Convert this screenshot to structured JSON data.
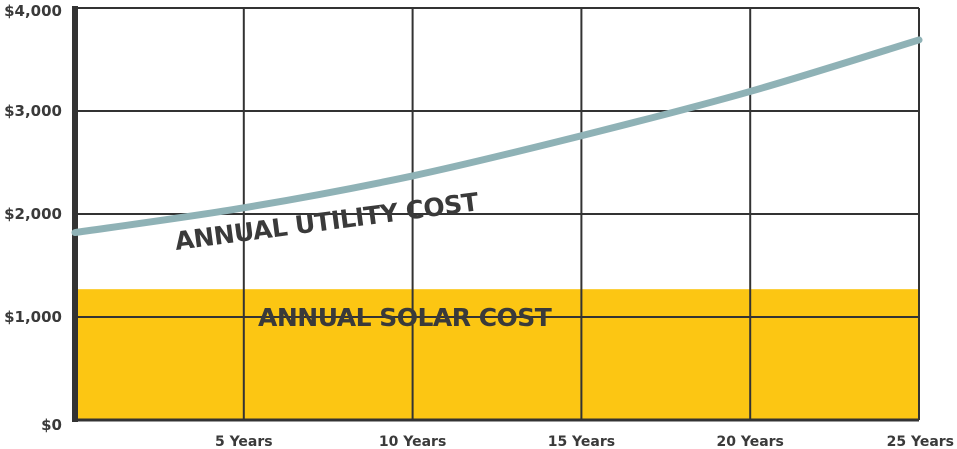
{
  "chart_data": {
    "type": "area",
    "x_tick_labels": [
      "5 Years",
      "10 Years",
      "15 Years",
      "20 Years",
      "25 Years"
    ],
    "x_tick_values": [
      5,
      10,
      15,
      20,
      25
    ],
    "xlim": [
      0,
      25
    ],
    "y_tick_labels": [
      "$0",
      "$1,000",
      "$2,000",
      "$3,000",
      "$4,000"
    ],
    "y_tick_values": [
      0,
      1000,
      2000,
      3000,
      4000
    ],
    "ylim": [
      0,
      4000
    ],
    "grid": true,
    "series": [
      {
        "name": "ANNUAL UTILITY COST",
        "kind": "line",
        "color": "#8fb2b6",
        "x": [
          0,
          5,
          10,
          15,
          20,
          25
        ],
        "y": [
          1820,
          2060,
          2370,
          2760,
          3190,
          3690
        ]
      },
      {
        "name": "ANNUAL SOLAR COST",
        "kind": "area",
        "color": "#fcc613",
        "x": [
          0,
          25
        ],
        "y": [
          1270,
          1270
        ]
      }
    ],
    "annotations": [
      "ANNUAL UTILITY COST",
      "ANNUAL SOLAR COST"
    ]
  }
}
